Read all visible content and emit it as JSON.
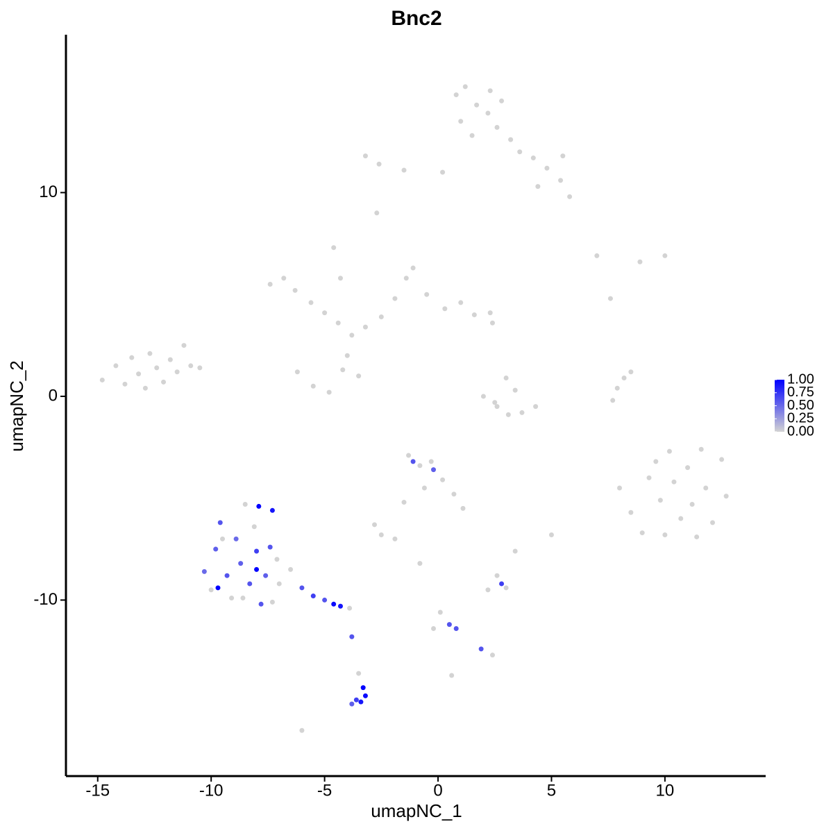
{
  "chart_data": {
    "type": "scatter",
    "title": "Bnc2",
    "x_label": "umapNC_1",
    "y_label": "umapNC_2",
    "xlim": [
      -16.4,
      14.44
    ],
    "ylim": [
      -18.64,
      17.75
    ],
    "xticks": [
      -15,
      -10,
      -5,
      0,
      5,
      10
    ],
    "yticks": [
      -10,
      0,
      10
    ],
    "color_scale": [
      "#d3d3d3",
      "#0000ff"
    ],
    "clim": [
      0,
      1
    ],
    "legend_ticks": [
      {
        "value": 0,
        "label": "0.00"
      },
      {
        "value": 0.25,
        "label": "0.25"
      },
      {
        "value": 0.5,
        "label": "0.50"
      },
      {
        "value": 0.75,
        "label": "0.75"
      },
      {
        "value": 1,
        "label": "1.00"
      }
    ],
    "legend_position": "right",
    "x": [
      -14.8,
      -14.2,
      -13.8,
      -13.5,
      -13.2,
      -12.9,
      -12.7,
      -12.4,
      -12.1,
      -11.8,
      -11.5,
      -11.2,
      -10.9,
      -10.5,
      0.8,
      1.2,
      1.7,
      2.3,
      2.8,
      1.0,
      1.5,
      2.2,
      2.6,
      3.2,
      3.6,
      4.2,
      4.8,
      5.4,
      5.8,
      5.5,
      4.4,
      -3.2,
      -2.6,
      -1.5,
      0.2,
      -2.7,
      -7.4,
      -6.8,
      -6.3,
      -5.6,
      -5.0,
      -4.4,
      -3.8,
      -3.2,
      -2.5,
      -1.9,
      -1.4,
      -1.1,
      -0.5,
      0.3,
      1.0,
      1.6,
      2.3,
      2.4,
      -4.6,
      -4.3,
      -6.2,
      -5.5,
      -4.8,
      -4.2,
      -4.0,
      -3.5,
      2.0,
      2.6,
      3.1,
      3.7,
      4.3,
      3.0,
      3.4,
      2.5,
      7.7,
      7.9,
      8.2,
      8.5,
      7.0,
      8.9,
      10.0,
      7.6,
      8.0,
      8.5,
      9.0,
      9.6,
      9.8,
      10.2,
      10.4,
      10.7,
      11.0,
      11.2,
      11.6,
      11.8,
      12.1,
      12.5,
      9.3,
      10.0,
      11.4,
      12.7,
      -1.3,
      -0.8,
      -0.3,
      0.2,
      0.7,
      1.1,
      -1.5,
      -0.6,
      -1.1,
      -0.2,
      -10.3,
      -10.0,
      -9.8,
      -9.6,
      -9.3,
      -9.1,
      -8.9,
      -8.7,
      -8.5,
      -8.3,
      -8.1,
      -8.0,
      -7.9,
      -7.6,
      -7.4,
      -7.3,
      -7.8,
      -9.7,
      -8.0,
      -7.3,
      -9.5,
      -8.6,
      -7.1,
      -7.0,
      -6.5,
      -6.0,
      -5.5,
      -5.0,
      -4.6,
      -4.3,
      -3.9,
      -3.8,
      -3.5,
      -3.3,
      -3.2,
      -3.4,
      -3.6,
      -3.8,
      -6.0,
      -2.5,
      -2.8,
      -1.9,
      -0.8,
      0.1,
      -0.2,
      0.5,
      0.8,
      1.9,
      2.4,
      2.2,
      2.6,
      3.0,
      2.8,
      5.0,
      3.4,
      0.6
    ],
    "y": [
      0.8,
      1.5,
      0.6,
      1.9,
      1.1,
      0.4,
      2.1,
      1.4,
      0.7,
      1.8,
      1.2,
      2.5,
      1.5,
      1.4,
      14.8,
      15.2,
      14.3,
      15.0,
      14.5,
      13.5,
      12.8,
      13.9,
      13.2,
      12.6,
      12.0,
      11.7,
      11.2,
      10.6,
      9.8,
      11.8,
      10.3,
      11.8,
      11.4,
      11.1,
      11.0,
      9.0,
      5.5,
      5.8,
      5.2,
      4.6,
      4.1,
      3.6,
      3.0,
      3.4,
      3.9,
      4.8,
      5.8,
      6.3,
      5.0,
      4.3,
      4.6,
      4.0,
      4.1,
      3.6,
      7.3,
      5.8,
      1.2,
      0.5,
      0.2,
      1.3,
      2.0,
      1.0,
      0.0,
      -0.5,
      -0.9,
      -0.8,
      -0.5,
      0.9,
      0.3,
      -0.3,
      -0.2,
      0.4,
      0.9,
      1.2,
      6.9,
      6.6,
      6.9,
      4.8,
      -4.5,
      -5.7,
      -6.7,
      -3.2,
      -5.1,
      -2.7,
      -4.2,
      -6.0,
      -3.5,
      -5.3,
      -2.6,
      -4.5,
      -6.2,
      -3.1,
      -4.0,
      -6.8,
      -6.9,
      -4.9,
      -2.9,
      -3.4,
      -3.2,
      -4.1,
      -4.8,
      -5.5,
      -5.2,
      -4.5,
      -3.2,
      -3.6,
      -8.6,
      -9.5,
      -7.5,
      -6.2,
      -8.8,
      -9.9,
      -7.0,
      -8.2,
      -5.3,
      -9.2,
      -6.4,
      -7.6,
      -5.4,
      -8.8,
      -7.4,
      -10.1,
      -10.2,
      -9.4,
      -8.5,
      -5.6,
      -7.0,
      -9.9,
      -8.0,
      -9.2,
      -8.5,
      -9.4,
      -9.8,
      -10.0,
      -10.2,
      -10.3,
      -10.4,
      -11.8,
      -13.6,
      -14.3,
      -14.7,
      -15.0,
      -14.9,
      -15.1,
      -16.4,
      -6.8,
      -6.3,
      -7.0,
      -8.2,
      -10.6,
      -11.4,
      -11.2,
      -11.4,
      -12.4,
      -12.7,
      -9.5,
      -8.8,
      -9.4,
      -9.2,
      -6.8,
      -7.6,
      -13.7
    ],
    "values": [
      0,
      0,
      0,
      0,
      0,
      0,
      0,
      0,
      0,
      0,
      0,
      0,
      0,
      0,
      0,
      0,
      0,
      0,
      0,
      0,
      0,
      0,
      0,
      0,
      0,
      0,
      0,
      0,
      0,
      0,
      0,
      0,
      0,
      0,
      0,
      0,
      0,
      0,
      0,
      0,
      0,
      0,
      0,
      0,
      0,
      0,
      0,
      0,
      0,
      0,
      0,
      0,
      0,
      0,
      0,
      0,
      0,
      0,
      0,
      0,
      0,
      0,
      0,
      0,
      0,
      0,
      0,
      0,
      0,
      0,
      0,
      0,
      0,
      0,
      0,
      0,
      0,
      0,
      0,
      0,
      0,
      0,
      0,
      0,
      0,
      0,
      0,
      0,
      0,
      0,
      0,
      0,
      0,
      0,
      0,
      0,
      0,
      0,
      0,
      0,
      0,
      0,
      0,
      0,
      0.6,
      0.55,
      0.5,
      0,
      0.55,
      0.6,
      0.6,
      0,
      0.5,
      0.55,
      0,
      0.6,
      0,
      0.7,
      1,
      0.55,
      0.6,
      0,
      0.6,
      1,
      1,
      0.9,
      0,
      0,
      0,
      0,
      0,
      0.6,
      0.7,
      0.6,
      0.95,
      0.9,
      0,
      0.6,
      0,
      1,
      0.95,
      0.9,
      0.7,
      0.55,
      0,
      0,
      0,
      0,
      0,
      0,
      0,
      0.6,
      0.6,
      0.6,
      0,
      0,
      0,
      0,
      0.7,
      0,
      0,
      0
    ]
  }
}
